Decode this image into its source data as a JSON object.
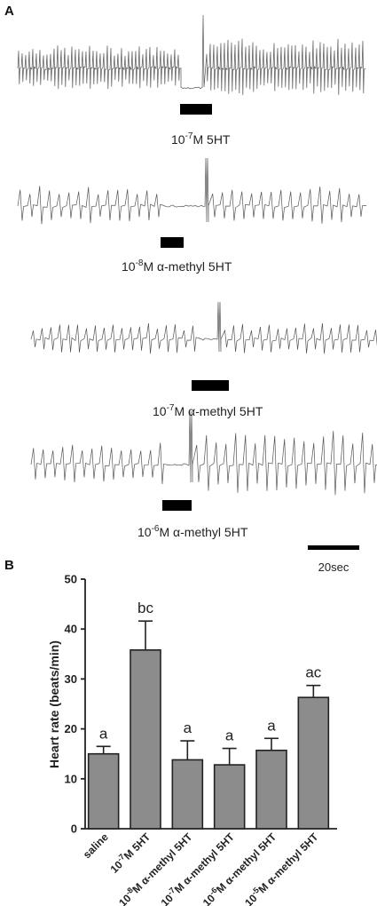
{
  "panel_a": {
    "label": "A",
    "traces": [
      {
        "label_base": "10",
        "label_exp": "-7",
        "label_rest": "M 5HT"
      },
      {
        "label_base": "10",
        "label_exp": "-8",
        "label_rest": "M α-methyl 5HT"
      },
      {
        "label_base": "10",
        "label_exp": "-7",
        "label_rest": "M α-methyl 5HT"
      },
      {
        "label_base": "10",
        "label_exp": "-6",
        "label_rest": "M α-methyl 5HT"
      }
    ],
    "scale_bar_label": "20sec"
  },
  "panel_b": {
    "label": "B"
  },
  "chart_data": {
    "type": "bar",
    "ylabel": "Heart rate (beats/min)",
    "ylim": [
      0,
      50
    ],
    "yticks": [
      "0",
      "10",
      "20",
      "30",
      "40",
      "50"
    ],
    "categories": [
      {
        "base": "saline",
        "exp": "",
        "rest": ""
      },
      {
        "base": "10",
        "exp": "-7",
        "rest": "M 5HT"
      },
      {
        "base": "10",
        "exp": "-8",
        "rest": "M α-methyl 5HT"
      },
      {
        "base": "10",
        "exp": "-7",
        "rest": "M α-methyl 5HT"
      },
      {
        "base": "10",
        "exp": "-6",
        "rest": "M α-methyl 5HT"
      },
      {
        "base": "10",
        "exp": "-5",
        "rest": "M α-methyl 5HT"
      }
    ],
    "values": [
      15,
      35.8,
      13.8,
      12.8,
      15.7,
      26.3
    ],
    "errors": [
      1.5,
      5.8,
      3.8,
      3.3,
      2.4,
      2.4
    ],
    "significance": [
      "a",
      "bc",
      "a",
      "a",
      "a",
      "ac"
    ],
    "bar_color": "#8c8c8c"
  }
}
